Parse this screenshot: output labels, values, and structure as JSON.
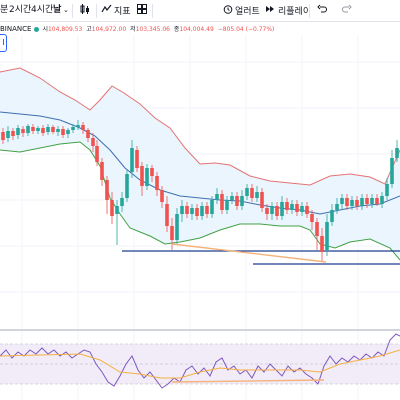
{
  "toolbar": {
    "items": [
      {
        "label": "분",
        "active": false
      },
      {
        "label": "2시간",
        "active": false
      },
      {
        "label": "4시간",
        "active": false
      },
      {
        "label": "날",
        "active": true
      }
    ],
    "chevron_icon": "chevron-down-icon",
    "compare_icon": "candles-icon",
    "indicators_icon": "indicators-icon",
    "indicators_label": "지표",
    "layout_icon": "grid-icon",
    "alert_icon": "alarm-clock-icon",
    "alert_label": "얼러트",
    "replay_icon": "replay-icon",
    "replay_label": "리플레이",
    "undo_icon": "undo-icon",
    "redo_icon": "redo-icon"
  },
  "legend": {
    "symbol": "BINANCE",
    "open_label": "시",
    "open_value": "104,809.53",
    "high_label": "고",
    "high_value": "104,972.00",
    "low_label": "저",
    "low_value": "103,345.06",
    "close_label": "종",
    "close_value": "104,004.49",
    "change": "−805.04 (−0.77%)",
    "status_color": "#26a69a",
    "down_color": "#ef5350"
  },
  "colors": {
    "up": "#26a69a",
    "down": "#ef5350",
    "band_upper": "#e57373",
    "band_lower": "#43a047",
    "band_basis": "#3f6fb0",
    "band_fill": "#e3f2fd",
    "trendline": "#f5b27a",
    "horizontal": "#1e3f8f",
    "rsi_line": "#7e57c2",
    "rsi_fill": "#ede7f6",
    "ma_line": "#f5b041"
  }
}
